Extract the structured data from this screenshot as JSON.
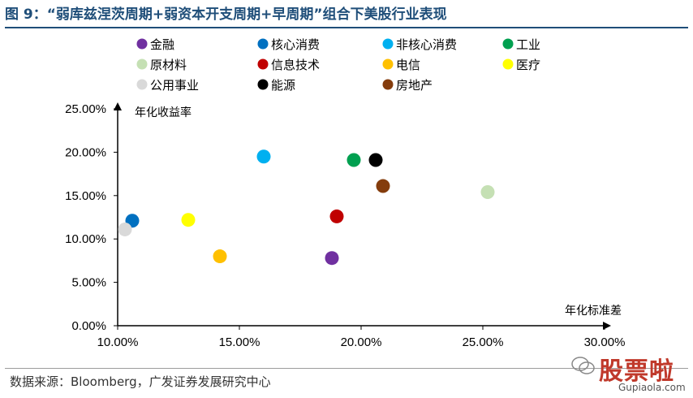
{
  "header": {
    "title": "图 9：“弱库兹涅茨周期+弱资本开支周期+早周期”组合下美股行业表现"
  },
  "footer": {
    "source": "数据来源：Bloomberg，广发证券发展研究中心"
  },
  "watermark": {
    "text": "股票啦",
    "url": "Gupiaola.com"
  },
  "chart_data": {
    "type": "scatter",
    "xlabel": "年化标准差",
    "ylabel": "年化收益率",
    "xlim": [
      0.1,
      0.3
    ],
    "ylim": [
      0.0,
      0.25
    ],
    "x_ticks": [
      "10.00%",
      "15.00%",
      "20.00%",
      "25.00%",
      "30.00%"
    ],
    "y_ticks": [
      "0.00%",
      "5.00%",
      "10.00%",
      "15.00%",
      "20.00%",
      "25.00%"
    ],
    "grid": false,
    "legend_position": "top",
    "series": [
      {
        "name": "金融",
        "color": "#7030a0",
        "x": 0.188,
        "y": 0.078
      },
      {
        "name": "核心消费",
        "color": "#0070c0",
        "x": 0.106,
        "y": 0.121
      },
      {
        "name": "非核心消费",
        "color": "#00b0f0",
        "x": 0.16,
        "y": 0.195
      },
      {
        "name": "工业",
        "color": "#00a050",
        "x": 0.197,
        "y": 0.191
      },
      {
        "name": "原材料",
        "color": "#c5e0b4",
        "x": 0.252,
        "y": 0.154
      },
      {
        "name": "信息技术",
        "color": "#c00000",
        "x": 0.19,
        "y": 0.126
      },
      {
        "name": "电信",
        "color": "#ffc000",
        "x": 0.142,
        "y": 0.08
      },
      {
        "name": "医疗",
        "color": "#ffff00",
        "x": 0.129,
        "y": 0.122
      },
      {
        "name": "公用事业",
        "color": "#d9d9d9",
        "x": 0.103,
        "y": 0.111
      },
      {
        "name": "能源",
        "color": "#000000",
        "x": 0.206,
        "y": 0.191
      },
      {
        "name": "房地产",
        "color": "#843c0c",
        "x": 0.209,
        "y": 0.161
      }
    ]
  }
}
